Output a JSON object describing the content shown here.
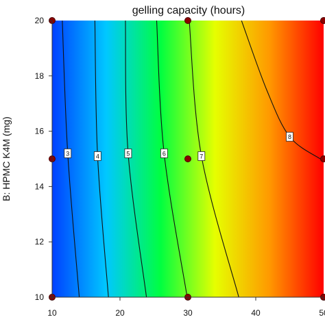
{
  "chart_data": {
    "type": "contour",
    "title": "gelling capacity (hours)",
    "xlabel": "",
    "ylabel": "B: HPMC K4M (mg)",
    "xlim": [
      10,
      50
    ],
    "ylim": [
      10,
      20
    ],
    "x_ticks": [
      10,
      20,
      30,
      40,
      50
    ],
    "y_ticks": [
      10,
      12,
      14,
      16,
      18,
      20
    ],
    "x_tick_labels": [
      "10",
      "20",
      "30",
      "40",
      "50"
    ],
    "y_tick_labels": [
      "10",
      "12",
      "14",
      "16",
      "18",
      "20"
    ],
    "colorscale": [
      "#0040ff",
      "#00c8ff",
      "#00ff40",
      "#e6ff00",
      "#ff9900",
      "#ff0000"
    ],
    "z_range": [
      2.2,
      8.6
    ],
    "contours": [
      {
        "level": 3,
        "label": "3",
        "points": [
          [
            11.5,
            20
          ],
          [
            12.3,
            15.2
          ],
          [
            14,
            10
          ]
        ]
      },
      {
        "level": 4,
        "label": "4",
        "points": [
          [
            16.3,
            20
          ],
          [
            16.7,
            15.1
          ],
          [
            18.3,
            10
          ]
        ]
      },
      {
        "level": 5,
        "label": "5",
        "points": [
          [
            20.8,
            20
          ],
          [
            21.2,
            15.2
          ],
          [
            23.9,
            10
          ]
        ]
      },
      {
        "level": 6,
        "label": "6",
        "points": [
          [
            25.4,
            20
          ],
          [
            26.5,
            15.2
          ],
          [
            29.9,
            10
          ]
        ]
      },
      {
        "level": 7,
        "label": "7",
        "points": [
          [
            30.2,
            20
          ],
          [
            32,
            15.1
          ],
          [
            37.5,
            10
          ]
        ]
      },
      {
        "level": 8,
        "label": "8",
        "points": [
          [
            37.9,
            20
          ],
          [
            41.6,
            17.5
          ],
          [
            45,
            15.8
          ],
          [
            49.5,
            15
          ]
        ]
      }
    ],
    "design_points": [
      {
        "x": 10,
        "y": 20
      },
      {
        "x": 30,
        "y": 20
      },
      {
        "x": 50,
        "y": 20
      },
      {
        "x": 10,
        "y": 15
      },
      {
        "x": 30,
        "y": 15
      },
      {
        "x": 50,
        "y": 15
      },
      {
        "x": 10,
        "y": 10
      },
      {
        "x": 30,
        "y": 10
      },
      {
        "x": 50,
        "y": 10
      }
    ],
    "colors": {
      "point_fill": "#8b0000",
      "point_stroke": "#4a0000",
      "contour_line": "#111111",
      "axis": "#333333"
    }
  }
}
